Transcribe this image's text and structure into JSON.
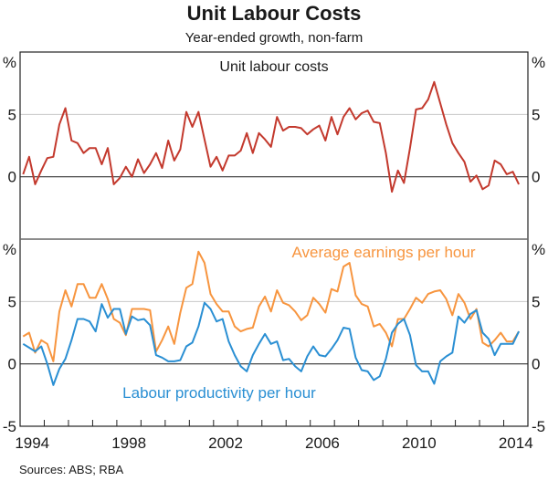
{
  "chart_data": {
    "type": "line",
    "title": "Unit Labour Costs",
    "subtitle": "Year-ended growth, non-farm",
    "source": "Sources:  ABS; RBA",
    "x_start": 1994.125,
    "x_step": 0.25,
    "xlim": [
      1994,
      2015
    ],
    "x_tick_labels": [
      "1994",
      "1998",
      "2002",
      "2006",
      "2010",
      "2014"
    ],
    "x_tick_values": [
      1994,
      1998,
      2002,
      2006,
      2010,
      2014
    ],
    "colors": {
      "ulc": "#c3392d",
      "earnings": "#f7953f",
      "productivity": "#2a8fd3"
    },
    "panels": [
      {
        "title": "Unit labour costs",
        "ylim": [
          -5,
          10
        ],
        "yunit": "%",
        "yticks": [
          {
            "v": 5,
            "l": "5"
          },
          {
            "v": 0,
            "l": "0"
          }
        ],
        "series": [
          {
            "name": "Unit labour costs",
            "key": "ulc",
            "values": [
              0.2,
              1.6,
              -0.6,
              0.5,
              1.5,
              1.6,
              4.2,
              5.5,
              2.9,
              2.7,
              1.9,
              2.3,
              2.3,
              1.0,
              2.3,
              -0.6,
              -0.1,
              0.8,
              0,
              1.4,
              0.3,
              1.0,
              1.9,
              0.7,
              2.9,
              1.3,
              2.2,
              5.2,
              4.0,
              5.2,
              3.0,
              0.8,
              1.6,
              0.5,
              1.7,
              1.7,
              2.1,
              3.5,
              1.9,
              3.5,
              3.0,
              2.4,
              4.8,
              3.7,
              4.0,
              4.0,
              3.9,
              3.4,
              3.8,
              4.1,
              2.9,
              4.8,
              3.4,
              4.8,
              5.5,
              4.6,
              5.1,
              5.3,
              4.4,
              4.3,
              1.9,
              -1.2,
              0.5,
              -0.5,
              2.3,
              5.4,
              5.5,
              6.2,
              7.6,
              5.9,
              4.2,
              2.7,
              1.9,
              1.2,
              -0.4,
              0.1,
              -1.0,
              -0.7,
              1.3,
              1.0,
              0.2,
              0.4,
              -0.6
            ]
          }
        ]
      },
      {
        "title": "",
        "ylim": [
          -5,
          10
        ],
        "yunit": "%",
        "yticks": [
          {
            "v": 5,
            "l": "5"
          },
          {
            "v": 0,
            "l": "0"
          },
          {
            "v": -5,
            "l": "-5"
          }
        ],
        "series": [
          {
            "name": "Average earnings per hour",
            "key": "earnings",
            "values": [
              2.2,
              2.5,
              0.9,
              1.9,
              1.6,
              0.2,
              4.2,
              5.9,
              4.6,
              6.4,
              6.4,
              5.3,
              5.3,
              6.4,
              5.2,
              3.6,
              3.3,
              2.3,
              4.4,
              4.4,
              4.4,
              4.3,
              1.0,
              1.9,
              3.0,
              1.6,
              4.1,
              6.1,
              6.4,
              9.0,
              8.1,
              5.6,
              4.8,
              4.2,
              4.2,
              3.0,
              2.6,
              2.8,
              2.9,
              4.6,
              5.4,
              4.2,
              5.9,
              4.9,
              4.7,
              4.2,
              3.5,
              3.9,
              5.3,
              4.8,
              4.1,
              6.0,
              5.8,
              7.8,
              8.1,
              5.5,
              4.8,
              4.6,
              3.0,
              3.2,
              2.5,
              1.4,
              3.6,
              3.6,
              4.4,
              5.3,
              4.9,
              5.6,
              5.8,
              5.9,
              5.2,
              3.9,
              5.6,
              4.9,
              3.6,
              4.4,
              1.7,
              1.4,
              1.9,
              2.5,
              1.8,
              1.8,
              2.6
            ]
          },
          {
            "name": "Labour productivity per hour",
            "key": "productivity",
            "values": [
              1.6,
              1.3,
              1.0,
              1.4,
              0,
              -1.7,
              -0.4,
              0.4,
              1.9,
              3.6,
              3.6,
              3.4,
              2.6,
              4.8,
              3.7,
              4.4,
              4.4,
              2.4,
              3.8,
              3.5,
              3.6,
              3.1,
              0.7,
              0.5,
              0.2,
              0.2,
              0.3,
              1.4,
              1.7,
              3.0,
              4.9,
              4.4,
              3.4,
              3.6,
              1.8,
              0.7,
              -0.2,
              -0.6,
              0.7,
              1.6,
              2.4,
              1.6,
              1.8,
              0.3,
              0.4,
              -0.2,
              -0.6,
              0.6,
              1.4,
              0.7,
              0.6,
              1.2,
              1.9,
              2.9,
              2.8,
              0.5,
              -0.5,
              -0.6,
              -1.3,
              -1.0,
              0.4,
              2.5,
              3.2,
              3.6,
              2.3,
              -0.1,
              -0.6,
              -0.6,
              -1.6,
              0.2,
              0.6,
              0.9,
              3.8,
              3.3,
              4.0,
              4.3,
              2.5,
              2.0,
              0.7,
              1.6,
              1.6,
              1.6,
              2.6
            ]
          }
        ]
      }
    ]
  }
}
